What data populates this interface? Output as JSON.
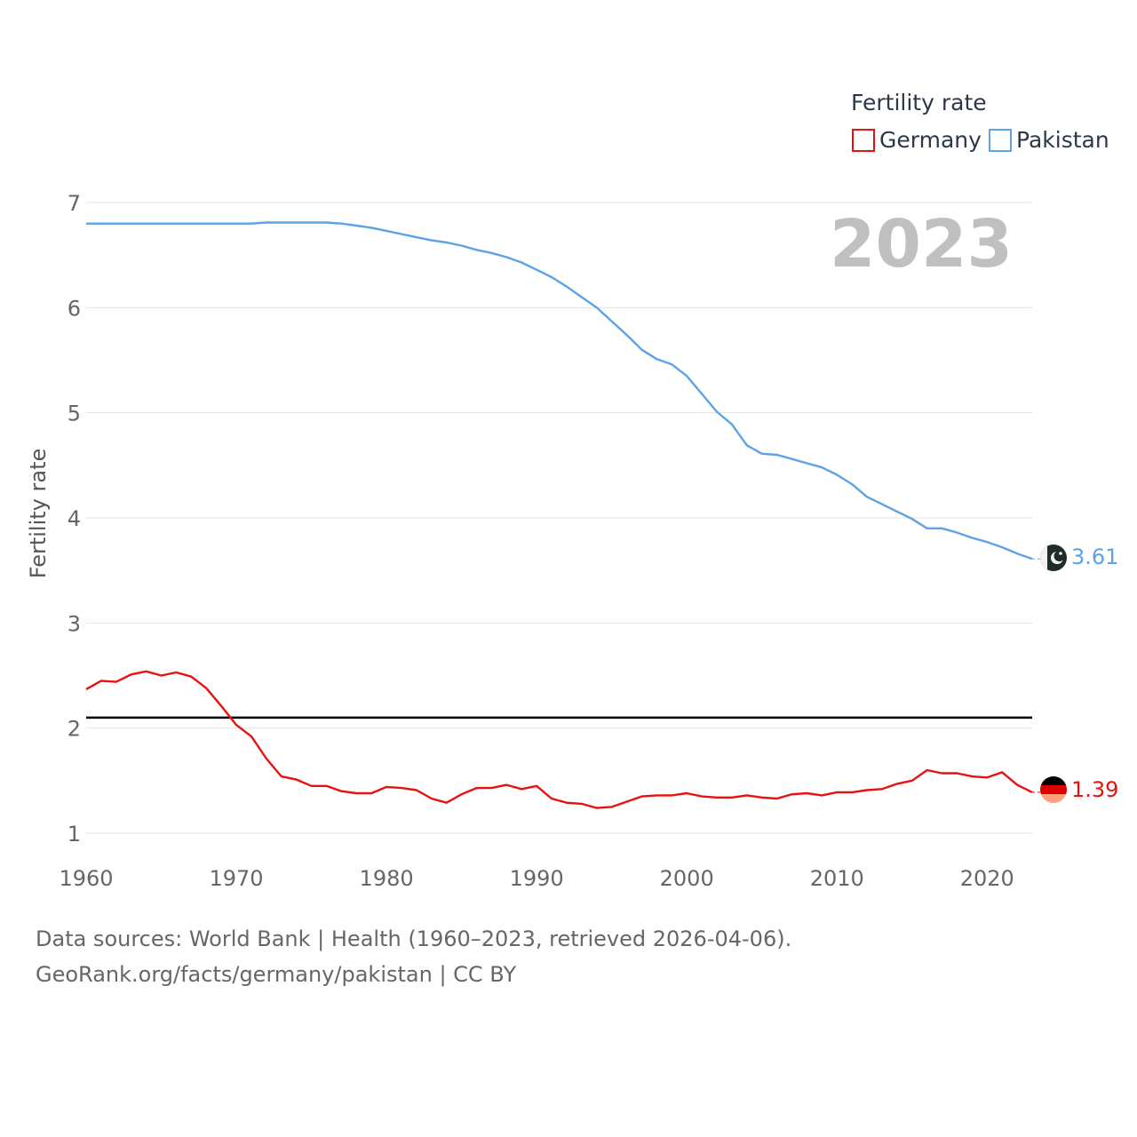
{
  "chart_data": {
    "type": "line",
    "title": "",
    "xlabel": "",
    "ylabel": "Fertility rate",
    "xlim": [
      1960,
      2023
    ],
    "ylim": [
      1,
      7
    ],
    "x_ticks": [
      "1960",
      "1970",
      "1980",
      "1990",
      "2000",
      "2010",
      "2020"
    ],
    "y_ticks": [
      "1",
      "2",
      "3",
      "4",
      "5",
      "6",
      "7"
    ],
    "year_label": "2023",
    "legend": {
      "title": "Fertility rate",
      "position": "top-right"
    },
    "reference_line": {
      "value": 2.1,
      "color": "#000000"
    },
    "x": [
      1960,
      1961,
      1962,
      1963,
      1964,
      1965,
      1966,
      1967,
      1968,
      1969,
      1970,
      1971,
      1972,
      1973,
      1974,
      1975,
      1976,
      1977,
      1978,
      1979,
      1980,
      1981,
      1982,
      1983,
      1984,
      1985,
      1986,
      1987,
      1988,
      1989,
      1990,
      1991,
      1992,
      1993,
      1994,
      1995,
      1996,
      1997,
      1998,
      1999,
      2000,
      2001,
      2002,
      2003,
      2004,
      2005,
      2006,
      2007,
      2008,
      2009,
      2010,
      2011,
      2012,
      2013,
      2014,
      2015,
      2016,
      2017,
      2018,
      2019,
      2020,
      2021,
      2022,
      2023
    ],
    "series": [
      {
        "name": "Germany",
        "color": "#e8110f",
        "end_label": "1.39",
        "flag": "germany-flag-icon",
        "values": [
          2.37,
          2.45,
          2.44,
          2.51,
          2.54,
          2.5,
          2.53,
          2.49,
          2.38,
          2.21,
          2.03,
          1.92,
          1.71,
          1.54,
          1.51,
          1.45,
          1.45,
          1.4,
          1.38,
          1.38,
          1.44,
          1.43,
          1.41,
          1.33,
          1.29,
          1.37,
          1.43,
          1.43,
          1.46,
          1.42,
          1.45,
          1.33,
          1.29,
          1.28,
          1.24,
          1.25,
          1.3,
          1.35,
          1.36,
          1.36,
          1.38,
          1.35,
          1.34,
          1.34,
          1.36,
          1.34,
          1.33,
          1.37,
          1.38,
          1.36,
          1.39,
          1.39,
          1.41,
          1.42,
          1.47,
          1.5,
          1.6,
          1.57,
          1.57,
          1.54,
          1.53,
          1.58,
          1.46,
          1.39
        ]
      },
      {
        "name": "Pakistan",
        "color": "#5ba3e6",
        "end_label": "3.61",
        "flag": "pakistan-flag-icon",
        "values": [
          6.8,
          6.8,
          6.8,
          6.8,
          6.8,
          6.8,
          6.8,
          6.8,
          6.8,
          6.8,
          6.8,
          6.8,
          6.81,
          6.81,
          6.81,
          6.81,
          6.81,
          6.8,
          6.78,
          6.76,
          6.73,
          6.7,
          6.67,
          6.64,
          6.62,
          6.59,
          6.55,
          6.52,
          6.48,
          6.43,
          6.36,
          6.29,
          6.2,
          6.1,
          6.0,
          5.87,
          5.74,
          5.6,
          5.51,
          5.46,
          5.35,
          5.18,
          5.01,
          4.89,
          4.69,
          4.61,
          4.6,
          4.56,
          4.52,
          4.48,
          4.41,
          4.32,
          4.2,
          4.13,
          4.06,
          3.99,
          3.9,
          3.9,
          3.86,
          3.81,
          3.77,
          3.72,
          3.66,
          3.61
        ]
      }
    ]
  },
  "footer": {
    "line1": "Data sources: World Bank | Health (1960–2023, retrieved 2026-04-06).",
    "line2": "GeoRank.org/facts/germany/pakistan | CC BY"
  }
}
